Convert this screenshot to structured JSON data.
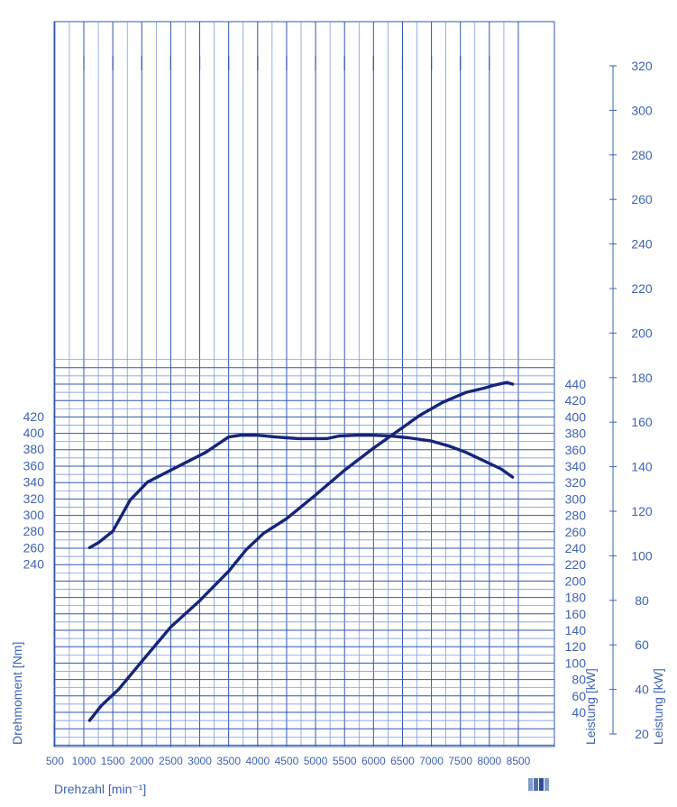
{
  "chart_data": {
    "type": "line",
    "xlabel": "Drehzahl [min⁻¹]",
    "xlim": [
      500,
      8500
    ],
    "x_ticks": [
      500,
      1000,
      1500,
      2000,
      2500,
      3000,
      3500,
      4000,
      4500,
      5000,
      5500,
      6000,
      6500,
      7000,
      7500,
      8000,
      8500
    ],
    "y_left": {
      "label": "Drehmoment [Nm]",
      "ticks": [
        240,
        260,
        280,
        300,
        320,
        340,
        360,
        380,
        400,
        420
      ]
    },
    "y_right_inner": {
      "label": "Leistung [kW]",
      "ticks": [
        40,
        60,
        80,
        100,
        120,
        140,
        160,
        180,
        200,
        220,
        240,
        260,
        280,
        300,
        320,
        340,
        360,
        380,
        400,
        420,
        440
      ]
    },
    "y_right_outer": {
      "label": "Leistung [kW]",
      "ticks": [
        20,
        40,
        60,
        80,
        100,
        120,
        140,
        160,
        180,
        200,
        220,
        240,
        260,
        280,
        300,
        320
      ]
    },
    "grid": true,
    "series": [
      {
        "axis": "torque",
        "x": [
          1100,
          1250,
          1500,
          1800,
          2100,
          2600,
          3100,
          3500,
          3700,
          4000,
          4300,
          4500,
          4700,
          5000,
          5200,
          5400,
          5700,
          6000,
          6300,
          6600,
          7000,
          7300,
          7600,
          7900,
          8200,
          8400
        ],
        "values": [
          260,
          266,
          280,
          318,
          340,
          358,
          376,
          395,
          397,
          397,
          395,
          394,
          393,
          393,
          393,
          396,
          397,
          397,
          396,
          394,
          390,
          384,
          376,
          366,
          356,
          346
        ]
      },
      {
        "axis": "power",
        "x": [
          1100,
          1300,
          1600,
          2000,
          2500,
          3000,
          3500,
          3800,
          4100,
          4500,
          5000,
          5500,
          6000,
          6500,
          6800,
          7200,
          7600,
          7900,
          8100,
          8300,
          8400
        ],
        "values": [
          30,
          48,
          68,
          102,
          144,
          176,
          212,
          238,
          258,
          276,
          305,
          335,
          362,
          387,
          402,
          418,
          430,
          435,
          439,
          442,
          440
        ]
      }
    ]
  }
}
